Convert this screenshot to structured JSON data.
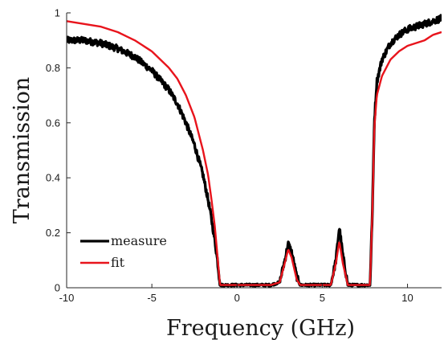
{
  "chart_data": {
    "type": "line",
    "title": "",
    "xlabel": "Frequency (GHz)",
    "ylabel": "Transmission",
    "xlim": [
      -10,
      12
    ],
    "ylim": [
      0,
      1
    ],
    "xticks": [
      -10,
      -5,
      0,
      5,
      10
    ],
    "yticks": [
      0,
      0.2,
      0.4,
      0.6,
      0.8,
      1
    ],
    "grid": false,
    "legend_position": "lower-left",
    "series": [
      {
        "name": "measure",
        "color": "#000000",
        "style": "noisy-thick",
        "x": [
          -10,
          -9,
          -8,
          -7,
          -6,
          -5,
          -4,
          -3.5,
          -3,
          -2.5,
          -2,
          -1.7,
          -1.5,
          -1.3,
          -1.15,
          -1.05,
          -1,
          -0.5,
          0,
          1,
          2,
          2.5,
          2.8,
          3,
          3.2,
          3.5,
          3.7,
          4,
          5,
          5.5,
          5.8,
          6,
          6.2,
          6.5,
          7,
          7.8,
          7.95,
          8.05,
          8.2,
          8.5,
          9,
          9.5,
          10,
          10.5,
          11,
          11.5,
          12
        ],
        "y": [
          0.9,
          0.9,
          0.89,
          0.87,
          0.84,
          0.79,
          0.72,
          0.67,
          0.6,
          0.52,
          0.41,
          0.32,
          0.25,
          0.17,
          0.1,
          0.04,
          0.01,
          0.01,
          0.01,
          0.01,
          0.01,
          0.02,
          0.1,
          0.16,
          0.13,
          0.04,
          0.01,
          0.01,
          0.01,
          0.01,
          0.1,
          0.22,
          0.12,
          0.01,
          0.01,
          0.01,
          0.3,
          0.6,
          0.75,
          0.83,
          0.89,
          0.92,
          0.94,
          0.95,
          0.96,
          0.97,
          0.98
        ]
      },
      {
        "name": "fit",
        "color": "#e8141c",
        "style": "smooth",
        "x": [
          -10,
          -9,
          -8,
          -7,
          -6,
          -5,
          -4,
          -3.5,
          -3,
          -2.5,
          -2,
          -1.7,
          -1.5,
          -1.3,
          -1.2,
          -1.1,
          -1,
          -0.5,
          0,
          1,
          2,
          2.5,
          2.8,
          3,
          3.2,
          3.5,
          3.7,
          4,
          5,
          5.5,
          5.8,
          6,
          6.2,
          6.5,
          7,
          7.8,
          7.95,
          8.05,
          8.2,
          8.5,
          9,
          9.5,
          10,
          10.5,
          11,
          11.5,
          12
        ],
        "y": [
          0.97,
          0.96,
          0.95,
          0.93,
          0.9,
          0.86,
          0.8,
          0.76,
          0.7,
          0.62,
          0.5,
          0.41,
          0.32,
          0.22,
          0.15,
          0.08,
          0.01,
          0.01,
          0.01,
          0.01,
          0.01,
          0.02,
          0.09,
          0.14,
          0.11,
          0.03,
          0.01,
          0.01,
          0.01,
          0.01,
          0.09,
          0.17,
          0.09,
          0.01,
          0.01,
          0.01,
          0.3,
          0.58,
          0.7,
          0.77,
          0.83,
          0.86,
          0.88,
          0.89,
          0.9,
          0.92,
          0.93
        ]
      }
    ]
  }
}
